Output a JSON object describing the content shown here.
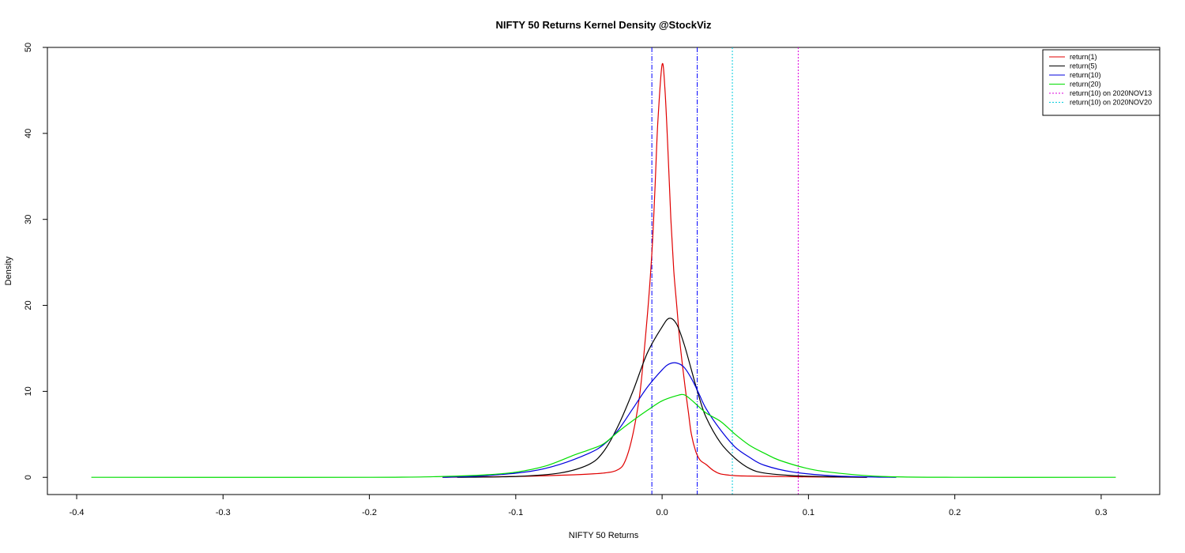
{
  "chart_data": {
    "type": "line",
    "title": "NIFTY 50 Returns Kernel Density @StockViz",
    "xlabel": "NIFTY 50 Returns",
    "ylabel": "Density",
    "xlim": [
      -0.42,
      0.34
    ],
    "ylim": [
      -2,
      50
    ],
    "xticks": [
      -0.4,
      -0.3,
      -0.2,
      -0.1,
      0.0,
      0.1,
      0.2,
      0.3
    ],
    "xtick_labels": [
      "-0.4",
      "-0.3",
      "-0.2",
      "-0.1",
      "0.0",
      "0.1",
      "0.2",
      "0.3"
    ],
    "yticks": [
      0,
      10,
      20,
      30,
      40,
      50
    ],
    "ytick_labels": [
      "0",
      "10",
      "20",
      "30",
      "40",
      "50"
    ],
    "legend_position": "top-right",
    "series": [
      {
        "name": "return(1)",
        "color": "#e00000",
        "x": [
          -0.15,
          -0.1,
          -0.06,
          -0.04,
          -0.03,
          -0.025,
          -0.02,
          -0.015,
          -0.01,
          -0.007,
          -0.005,
          -0.003,
          0.0,
          0.002,
          0.004,
          0.006,
          0.008,
          0.01,
          0.012,
          0.015,
          0.018,
          0.02,
          0.023,
          0.026,
          0.03,
          0.035,
          0.04,
          0.05,
          0.06,
          0.08,
          0.1,
          0.14
        ],
        "y": [
          0,
          0.1,
          0.3,
          0.5,
          0.9,
          2.0,
          5.0,
          10.0,
          19.0,
          26.0,
          33.0,
          41.0,
          48.0,
          45.0,
          38.0,
          30.0,
          24.0,
          20.0,
          16.0,
          11.5,
          7.5,
          5.0,
          3.0,
          2.0,
          1.5,
          0.8,
          0.4,
          0.2,
          0.15,
          0.1,
          0.05,
          0
        ]
      },
      {
        "name": "return(5)",
        "color": "#000000",
        "x": [
          -0.14,
          -0.1,
          -0.07,
          -0.05,
          -0.04,
          -0.03,
          -0.02,
          -0.01,
          0.0,
          0.005,
          0.01,
          0.015,
          0.02,
          0.025,
          0.03,
          0.04,
          0.05,
          0.06,
          0.07,
          0.09,
          0.12,
          0.14
        ],
        "y": [
          0,
          0.1,
          0.5,
          1.5,
          3.0,
          6.0,
          10.0,
          14.5,
          17.5,
          18.5,
          17.8,
          15.5,
          12.5,
          9.5,
          7.0,
          4.0,
          2.2,
          1.0,
          0.5,
          0.2,
          0.05,
          0
        ]
      },
      {
        "name": "return(10)",
        "color": "#0000dd",
        "x": [
          -0.15,
          -0.12,
          -0.09,
          -0.07,
          -0.05,
          -0.04,
          -0.03,
          -0.02,
          -0.01,
          0.0,
          0.005,
          0.01,
          0.015,
          0.02,
          0.025,
          0.03,
          0.04,
          0.05,
          0.06,
          0.07,
          0.09,
          0.12,
          0.16
        ],
        "y": [
          0,
          0.2,
          0.7,
          1.5,
          2.8,
          3.8,
          5.5,
          8.0,
          10.5,
          12.5,
          13.2,
          13.3,
          12.8,
          11.5,
          9.8,
          8.0,
          5.5,
          3.5,
          2.3,
          1.4,
          0.6,
          0.15,
          0
        ]
      },
      {
        "name": "return(20)",
        "color": "#00dd00",
        "x": [
          -0.39,
          -0.2,
          -0.15,
          -0.12,
          -0.1,
          -0.08,
          -0.06,
          -0.05,
          -0.04,
          -0.03,
          -0.02,
          -0.01,
          0.0,
          0.01,
          0.015,
          0.02,
          0.03,
          0.04,
          0.05,
          0.06,
          0.07,
          0.08,
          0.1,
          0.12,
          0.15,
          0.2,
          0.31
        ],
        "y": [
          0,
          0,
          0.1,
          0.3,
          0.6,
          1.3,
          2.6,
          3.2,
          3.9,
          5.3,
          6.6,
          7.8,
          8.9,
          9.5,
          9.6,
          9.0,
          7.5,
          6.5,
          5.0,
          3.7,
          2.8,
          2.0,
          1.0,
          0.5,
          0.1,
          0,
          0
        ]
      }
    ],
    "vertical_lines": [
      {
        "x": -0.007,
        "color": "#0000ff",
        "style": "dashdot"
      },
      {
        "x": 0.024,
        "color": "#0000ff",
        "style": "dashdot"
      },
      {
        "name": "return(10) on 2020NOV13",
        "x": 0.093,
        "color": "#dd00dd",
        "style": "dotted"
      },
      {
        "name": "return(10) on 2020NOV20",
        "x": 0.048,
        "color": "#00ccdd",
        "style": "dotted"
      }
    ],
    "legend": [
      {
        "label": "return(1)",
        "color": "#e00000",
        "style": "solid"
      },
      {
        "label": "return(5)",
        "color": "#000000",
        "style": "solid"
      },
      {
        "label": "return(10)",
        "color": "#0000dd",
        "style": "solid"
      },
      {
        "label": "return(20)",
        "color": "#00dd00",
        "style": "solid"
      },
      {
        "label": "return(10) on 2020NOV13",
        "color": "#dd00dd",
        "style": "dotted"
      },
      {
        "label": "return(10) on 2020NOV20",
        "color": "#00ccdd",
        "style": "dotted"
      }
    ]
  }
}
